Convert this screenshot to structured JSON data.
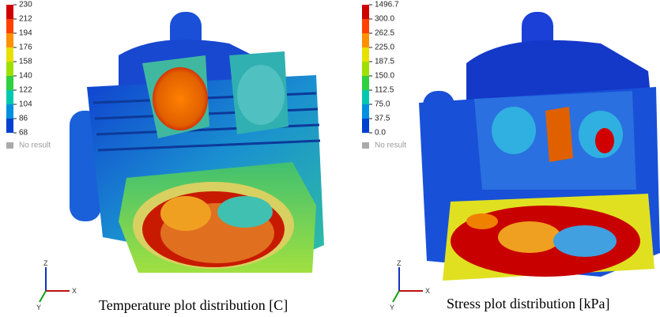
{
  "panels": [
    {
      "legend": {
        "labels": [
          "230",
          "212",
          "194",
          "176",
          "158",
          "140",
          "122",
          "104",
          "86",
          "68"
        ],
        "no_result": "No result"
      },
      "axes": {
        "z": "Z",
        "x": "X",
        "y": "Y"
      },
      "caption": "Temperature plot distribution [C]"
    },
    {
      "legend": {
        "labels": [
          "1496.7",
          "300.0",
          "262.5",
          "225.0",
          "187.5",
          "150.0",
          "112.5",
          "75.0",
          "37.5",
          "0.0"
        ],
        "no_result": "No result"
      },
      "axes": {
        "z": "Z",
        "x": "X",
        "y": "Y"
      },
      "caption": "Stress plot distribution [kPa]"
    }
  ]
}
